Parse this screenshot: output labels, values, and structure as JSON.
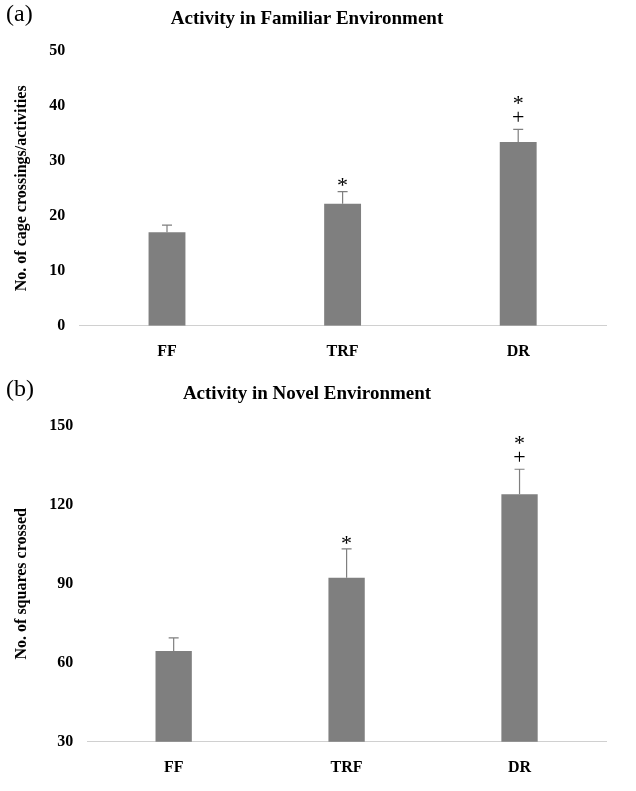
{
  "chart_data": [
    {
      "type": "bar",
      "panel_label": "(a)",
      "title": "Activity in Familiar Environment",
      "y_label": "No. of cage crossings/activities",
      "categories": [
        "FF",
        "TRF",
        "DR"
      ],
      "values": [
        17,
        22.2,
        33.4
      ],
      "errors": [
        1.3,
        2.2,
        2.3
      ],
      "annotations": [
        [],
        [
          "*"
        ],
        [
          "*",
          "+"
        ]
      ],
      "color": "#7f7f7f",
      "ylim": [
        0,
        50
      ],
      "yticks": [
        0,
        10,
        20,
        30,
        40,
        50
      ],
      "grid": false
    },
    {
      "type": "bar",
      "panel_label": "(b)",
      "title": "Activity in Novel Environment",
      "y_label": "No. of squares crossed",
      "categories": [
        "FF",
        "TRF",
        "DR"
      ],
      "values": [
        64.5,
        92.3,
        124
      ],
      "errors": [
        5,
        11,
        9.5
      ],
      "annotations": [
        [],
        [
          "*"
        ],
        [
          "*",
          "+"
        ]
      ],
      "color": "#7f7f7f",
      "ylim": [
        30,
        150
      ],
      "yticks": [
        30,
        60,
        90,
        120,
        150
      ],
      "grid": false
    }
  ]
}
